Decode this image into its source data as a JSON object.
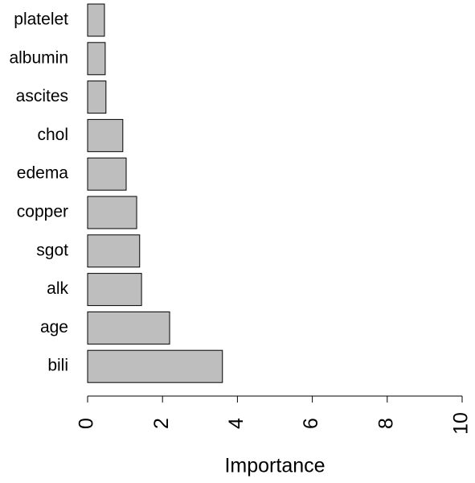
{
  "chart_data": {
    "type": "barh",
    "x_label": "Importance",
    "categories": [
      "platelet",
      "albumin",
      "ascites",
      "chol",
      "edema",
      "copper",
      "sgot",
      "alk",
      "age",
      "bili"
    ],
    "values": [
      0.45,
      0.47,
      0.49,
      0.94,
      1.03,
      1.31,
      1.39,
      1.44,
      2.19,
      3.6
    ],
    "color": "#bebebe",
    "xlim": [
      0,
      10
    ],
    "xticks": [
      0,
      2,
      4,
      6,
      8,
      10
    ]
  }
}
